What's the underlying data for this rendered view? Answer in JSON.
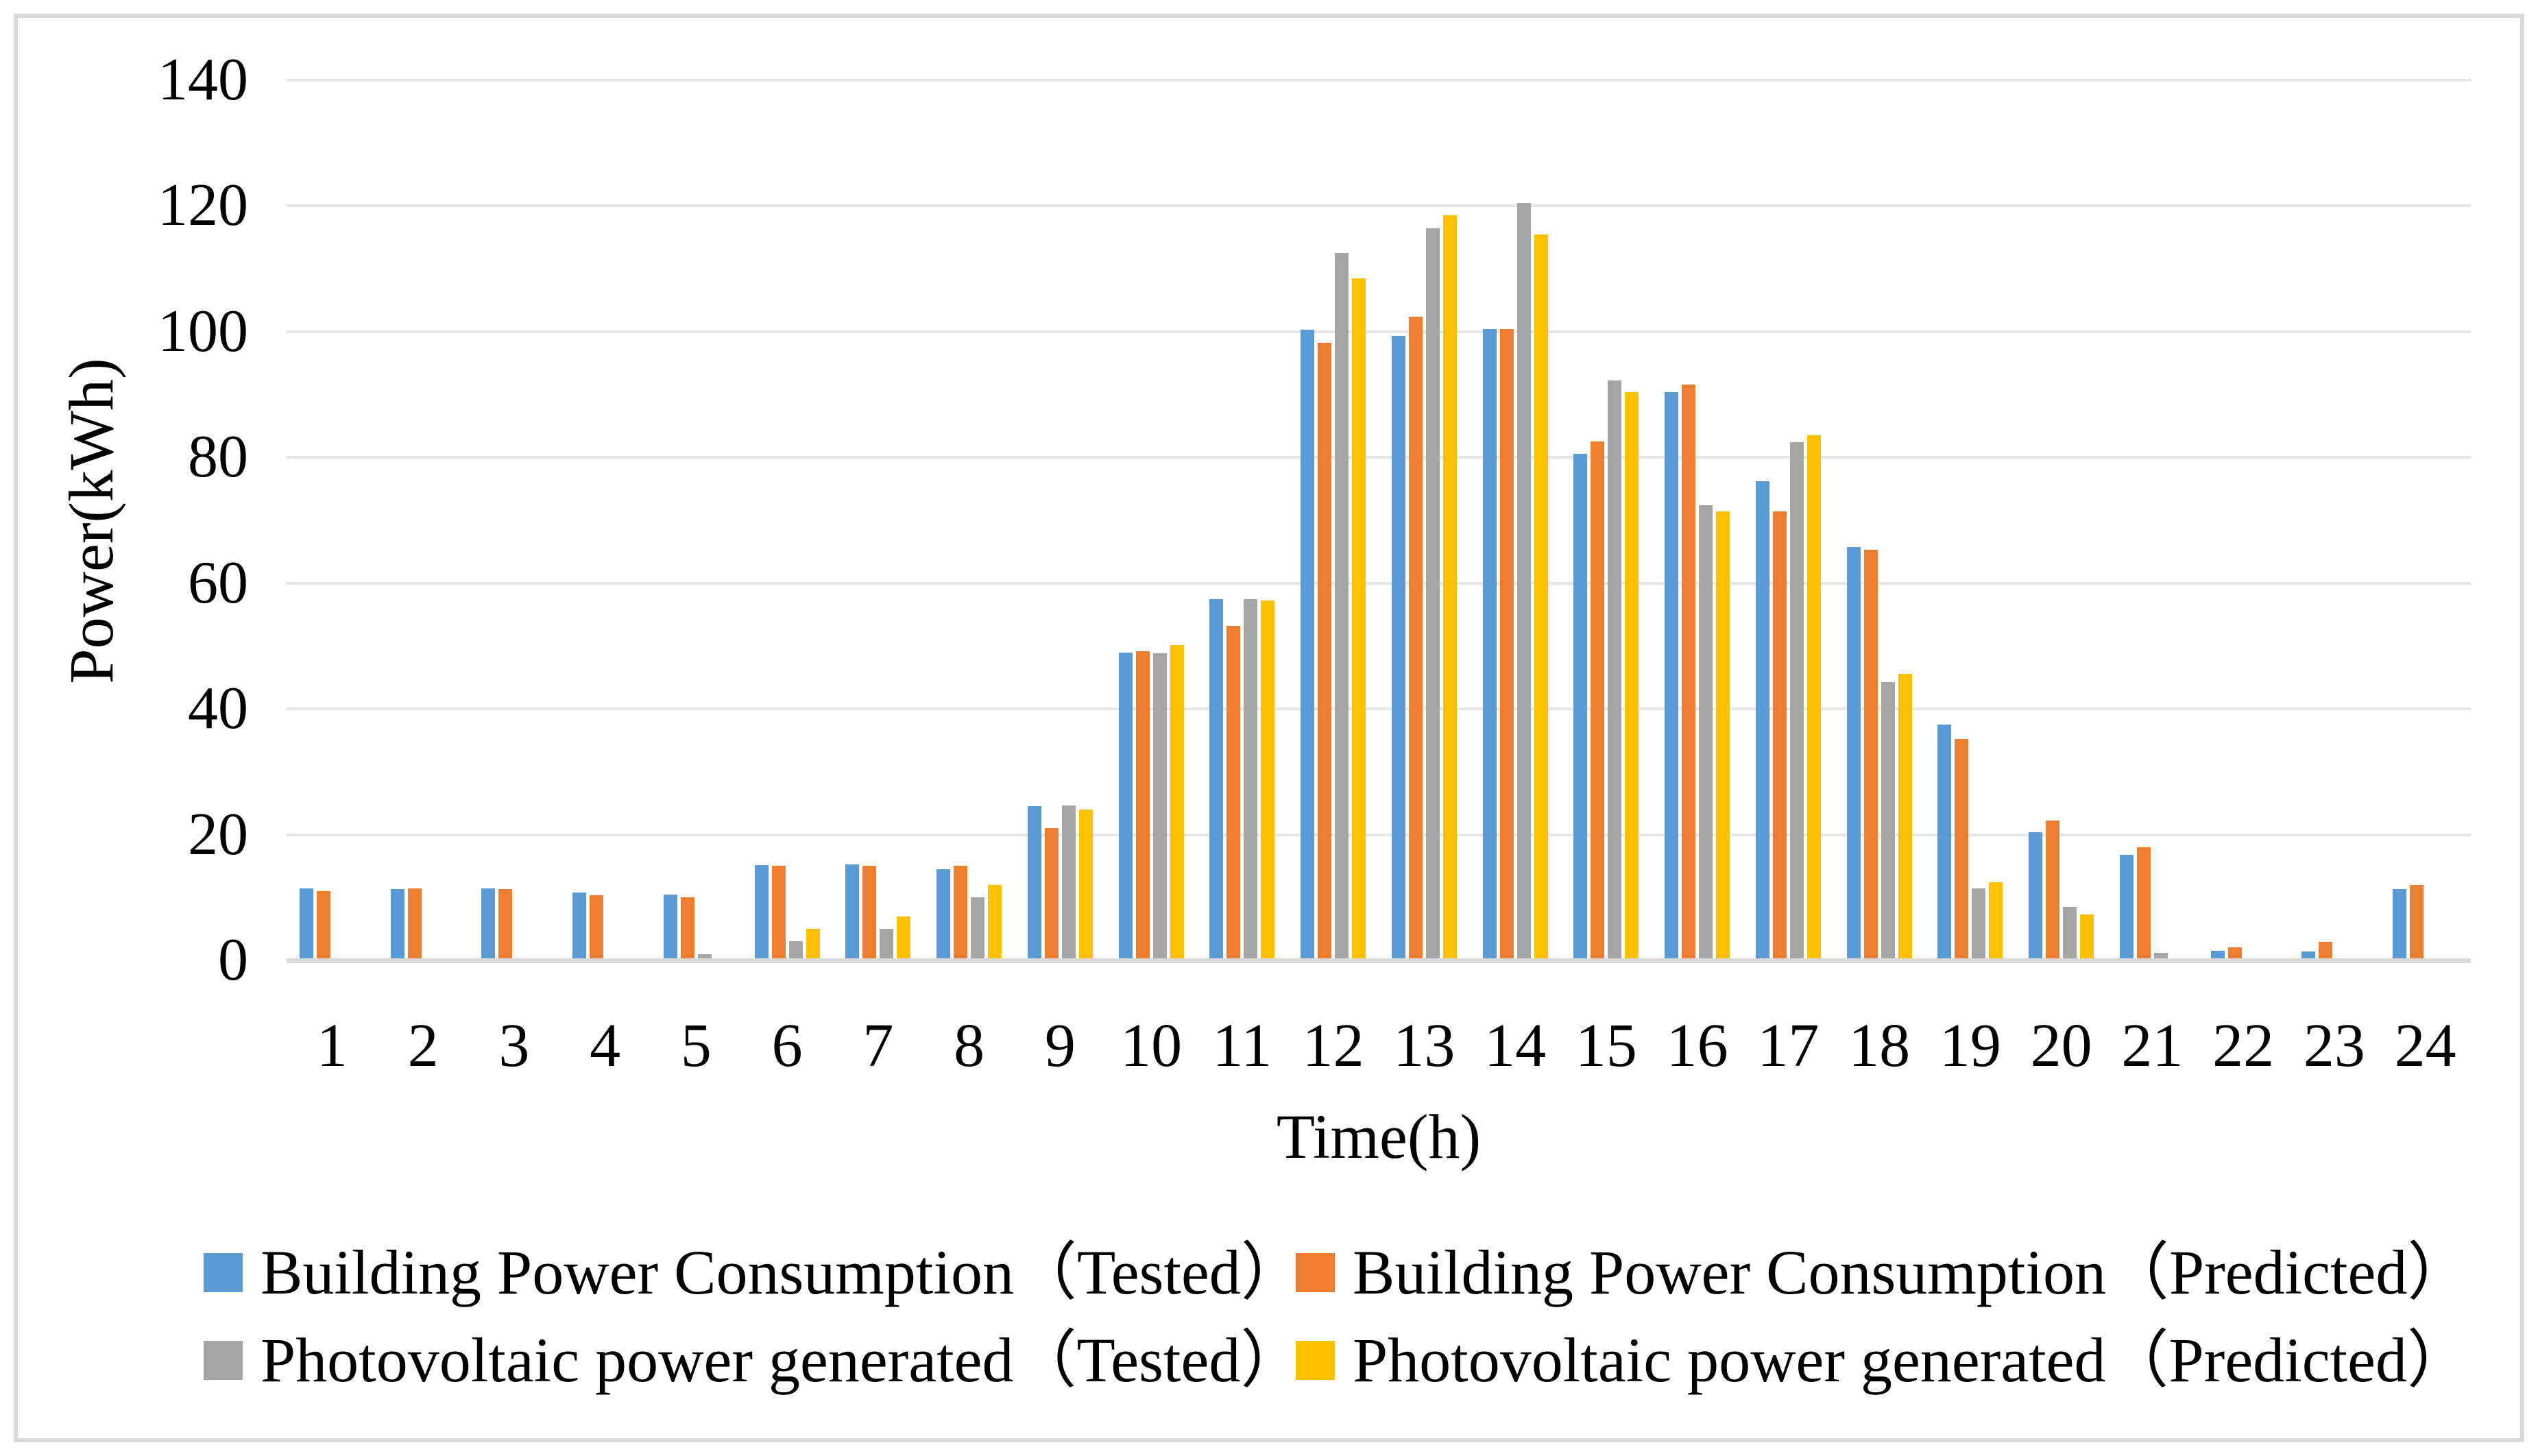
{
  "figure": {
    "background": "#FFFFFF",
    "border_color": "#D9D9D9",
    "gridline_color": "#E6E6E6",
    "axisline_color": "#D9D9D9"
  },
  "chart_data": {
    "type": "bar",
    "title": "",
    "xlabel": "Time(h)",
    "ylabel": "Power(kWh)",
    "ylim": [
      0,
      140
    ],
    "ytick_step": 20,
    "yticks": [
      0,
      20,
      40,
      60,
      80,
      100,
      120,
      140
    ],
    "grid": "horizontal",
    "legend_position": "bottom",
    "categories": [
      "1",
      "2",
      "3",
      "4",
      "5",
      "6",
      "7",
      "8",
      "9",
      "10",
      "11",
      "12",
      "13",
      "14",
      "15",
      "16",
      "17",
      "18",
      "19",
      "20",
      "21",
      "22",
      "23",
      "24"
    ],
    "series": [
      {
        "name": "Building Power Consumption（Tested）",
        "color": "#5B9BD5",
        "values": [
          11.5,
          11.3,
          11.4,
          10.8,
          10.5,
          15.2,
          15.3,
          14.5,
          24.5,
          49.0,
          57.5,
          100.3,
          99.3,
          100.4,
          80.6,
          90.4,
          76.2,
          65.7,
          37.5,
          20.4,
          16.8,
          1.5,
          1.4,
          11.3
        ]
      },
      {
        "name": "Building Power Consumption（Predicted）",
        "color": "#ED7D31",
        "values": [
          11.0,
          11.5,
          11.3,
          10.4,
          10.0,
          15.0,
          15.0,
          15.0,
          21.0,
          49.2,
          53.2,
          98.2,
          102.4,
          100.4,
          82.5,
          91.6,
          71.4,
          65.3,
          35.2,
          22.2,
          18.0,
          2.1,
          2.9,
          12.0
        ]
      },
      {
        "name": "Photovoltaic power generated（Tested）",
        "color": "#A5A5A5",
        "values": [
          0,
          0,
          0,
          0,
          1.0,
          3.0,
          5.0,
          10.0,
          24.6,
          48.8,
          57.5,
          112.5,
          116.4,
          120.5,
          92.2,
          72.4,
          82.4,
          44.3,
          11.5,
          8.5,
          1.2,
          0,
          0,
          0
        ]
      },
      {
        "name": "Photovoltaic power generated（Predicted）",
        "color": "#FFC000",
        "values": [
          0,
          0,
          0,
          0,
          0,
          5.0,
          7.0,
          12.0,
          24.0,
          50.2,
          57.2,
          108.5,
          118.5,
          115.5,
          90.4,
          71.4,
          83.5,
          45.6,
          12.4,
          7.3,
          0,
          0,
          0,
          0
        ]
      }
    ]
  }
}
